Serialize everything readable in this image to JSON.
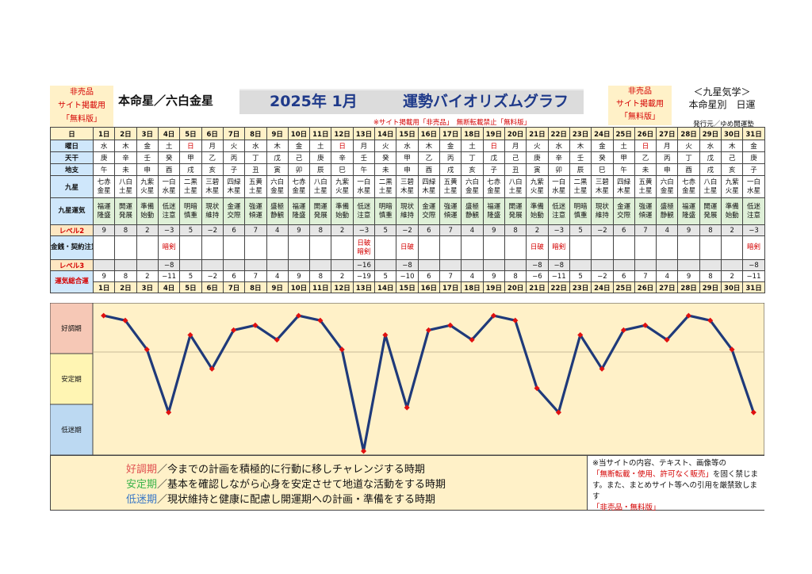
{
  "header": {
    "left_badge": [
      "非売品",
      "サイト掲載用",
      "「無料版」"
    ],
    "honmei_label": "本命星／六白金星",
    "title_year": "2025年 1月",
    "title_main": "運勢バイオリズムグラフ",
    "right_badge": [
      "非売品",
      "サイト掲載用",
      "「無料版」"
    ],
    "kyusei_title": "＜九星気学＞",
    "kyusei_sub": "本命星別　日運",
    "notice": "※サイト掲載用「非売品」　無断転載禁止「無料版」",
    "issuer": "発行元／ゆめ開運塾"
  },
  "row_labels": {
    "day": "日",
    "weekday": "曜日",
    "tenkan": "天干",
    "chishi": "地支",
    "kyusei": "九星",
    "unsei": "九星運気",
    "level2": "レベル2",
    "kinsen": "金銭・契約注意日",
    "level3": "レベル3",
    "total": "運気総合運"
  },
  "days": [
    "1日",
    "2日",
    "3日",
    "4日",
    "5日",
    "6日",
    "7日",
    "8日",
    "9日",
    "10日",
    "11日",
    "12日",
    "13日",
    "14日",
    "15日",
    "16日",
    "17日",
    "18日",
    "19日",
    "20日",
    "21日",
    "22日",
    "23日",
    "24日",
    "25日",
    "26日",
    "27日",
    "28日",
    "29日",
    "30日",
    "31日"
  ],
  "weekdays": [
    "水",
    "木",
    "金",
    "土",
    "日",
    "月",
    "火",
    "水",
    "木",
    "金",
    "土",
    "日",
    "月",
    "火",
    "水",
    "木",
    "金",
    "土",
    "日",
    "月",
    "火",
    "水",
    "木",
    "金",
    "土",
    "日",
    "月",
    "火",
    "水",
    "木",
    "金"
  ],
  "sunday_color": "#d40000",
  "tenkan": [
    "庚",
    "辛",
    "壬",
    "癸",
    "甲",
    "乙",
    "丙",
    "丁",
    "戊",
    "己",
    "庚",
    "辛",
    "壬",
    "癸",
    "甲",
    "乙",
    "丙",
    "丁",
    "戊",
    "己",
    "庚",
    "辛",
    "壬",
    "癸",
    "甲",
    "乙",
    "丙",
    "丁",
    "戊",
    "己",
    "庚"
  ],
  "chishi": [
    "午",
    "未",
    "申",
    "酉",
    "戌",
    "亥",
    "子",
    "丑",
    "寅",
    "卯",
    "辰",
    "巳",
    "午",
    "未",
    "申",
    "酉",
    "戌",
    "亥",
    "子",
    "丑",
    "寅",
    "卯",
    "辰",
    "巳",
    "午",
    "未",
    "申",
    "酉",
    "戌",
    "亥",
    "子"
  ],
  "kyusei": [
    [
      "七赤",
      "金星"
    ],
    [
      "八白",
      "土星"
    ],
    [
      "九紫",
      "火星"
    ],
    [
      "一白",
      "水星"
    ],
    [
      "二黒",
      "土星"
    ],
    [
      "三碧",
      "木星"
    ],
    [
      "四緑",
      "木星"
    ],
    [
      "五黄",
      "土星"
    ],
    [
      "六白",
      "金星"
    ],
    [
      "七赤",
      "金星"
    ],
    [
      "八白",
      "土星"
    ],
    [
      "九紫",
      "火星"
    ],
    [
      "一白",
      "水星"
    ],
    [
      "二黒",
      "土星"
    ],
    [
      "三碧",
      "木星"
    ],
    [
      "四緑",
      "木星"
    ],
    [
      "五黄",
      "土星"
    ],
    [
      "六白",
      "金星"
    ],
    [
      "七赤",
      "金星"
    ],
    [
      "八白",
      "土星"
    ],
    [
      "九紫",
      "火星"
    ],
    [
      "一白",
      "水星"
    ],
    [
      "二黒",
      "土星"
    ],
    [
      "三碧",
      "木星"
    ],
    [
      "四緑",
      "木星"
    ],
    [
      "五黄",
      "土星"
    ],
    [
      "六白",
      "金星"
    ],
    [
      "七赤",
      "金星"
    ],
    [
      "八白",
      "土星"
    ],
    [
      "九紫",
      "火星"
    ],
    [
      "一白",
      "水星"
    ]
  ],
  "unsei": [
    [
      "福運",
      "隆盛"
    ],
    [
      "開運",
      "発展"
    ],
    [
      "準備",
      "始動"
    ],
    [
      "低迷",
      "注意"
    ],
    [
      "明暗",
      "慎重"
    ],
    [
      "現状",
      "維持"
    ],
    [
      "金運",
      "交際"
    ],
    [
      "強運",
      "傾運"
    ],
    [
      "盛極",
      "静観"
    ],
    [
      "福運",
      "隆盛"
    ],
    [
      "開運",
      "発展"
    ],
    [
      "準備",
      "始動"
    ],
    [
      "低迷",
      "注意"
    ],
    [
      "明暗",
      "慎重"
    ],
    [
      "現状",
      "維持"
    ],
    [
      "金運",
      "交際"
    ],
    [
      "強運",
      "傾運"
    ],
    [
      "盛極",
      "静観"
    ],
    [
      "福運",
      "隆盛"
    ],
    [
      "開運",
      "発展"
    ],
    [
      "準備",
      "始動"
    ],
    [
      "低迷",
      "注意"
    ],
    [
      "明暗",
      "慎重"
    ],
    [
      "現状",
      "維持"
    ],
    [
      "金運",
      "交際"
    ],
    [
      "強運",
      "傾運"
    ],
    [
      "盛極",
      "静観"
    ],
    [
      "福運",
      "隆盛"
    ],
    [
      "開運",
      "発展"
    ],
    [
      "準備",
      "始動"
    ],
    [
      "低迷",
      "注意"
    ]
  ],
  "level2": [
    "9",
    "8",
    "2",
    "−3",
    "5",
    "−2",
    "6",
    "7",
    "4",
    "9",
    "8",
    "2",
    "−3",
    "5",
    "−2",
    "6",
    "7",
    "4",
    "9",
    "8",
    "2",
    "−3",
    "5",
    "−2",
    "6",
    "7",
    "4",
    "9",
    "8",
    "2",
    "−3"
  ],
  "kinsen": [
    "",
    "",
    "",
    "暗剣",
    "",
    "",
    "",
    "",
    "",
    "",
    "",
    "",
    "日破\n暗剣",
    "",
    "日破",
    "",
    "",
    "",
    "",
    "",
    "日破",
    "暗剣",
    "",
    "",
    "",
    "",
    "",
    "",
    "",
    "",
    "暗剣"
  ],
  "level3": [
    "",
    "",
    "",
    "−8",
    "",
    "",
    "",
    "",
    "",
    "",
    "",
    "",
    "−16",
    "",
    "−8",
    "",
    "",
    "",
    "",
    "",
    "−8",
    "−8",
    "",
    "",
    "",
    "",
    "",
    "",
    "",
    "",
    "−8"
  ],
  "total": [
    "9",
    "8",
    "2",
    "−11",
    "5",
    "−2",
    "6",
    "7",
    "4",
    "9",
    "8",
    "2",
    "−19",
    "5",
    "−10",
    "6",
    "7",
    "4",
    "9",
    "8",
    "−6",
    "−11",
    "5",
    "−2",
    "6",
    "7",
    "4",
    "9",
    "8",
    "2",
    "−11"
  ],
  "chart_data": {
    "type": "line",
    "title": "",
    "categories": [
      "1日",
      "2日",
      "3日",
      "4日",
      "5日",
      "6日",
      "7日",
      "8日",
      "9日",
      "10日",
      "11日",
      "12日",
      "13日",
      "14日",
      "15日",
      "16日",
      "17日",
      "18日",
      "19日",
      "20日",
      "21日",
      "22日",
      "23日",
      "24日",
      "25日",
      "26日",
      "27日",
      "28日",
      "29日",
      "30日",
      "31日"
    ],
    "values": [
      9,
      8,
      2,
      -11,
      5,
      -2,
      6,
      7,
      4,
      9,
      8,
      2,
      -19,
      5,
      -10,
      6,
      7,
      4,
      9,
      8,
      -6,
      -11,
      5,
      -2,
      6,
      7,
      4,
      9,
      8,
      2,
      -11
    ],
    "ylim": [
      -19,
      10
    ],
    "zones": [
      "好調期",
      "安定期",
      "低迷期"
    ],
    "zone_colors": [
      "#f6c8b6",
      "#fff5b3",
      "#bcd9f2"
    ],
    "line_color": "#1f3a7a",
    "marker_color": "#e01010",
    "plot_bg": "#fff1c8"
  },
  "legend": {
    "good_term": "好調期",
    "good_text": "／今までの計画を積極的に行動に移しチャレンジする時期",
    "stable_term": "安定期",
    "stable_text": "／基本を確認しながら心身を安定させて地道な活動をする時期",
    "low_term": "低迷期",
    "low_text": "／現状維持と健康に配慮し開運期への計画・準備をする時期",
    "note_1": "※当サイトの内容、テキスト、画像等の",
    "note_2": "「無断転載・使用、許可なく販売」",
    "note_3": "を固く禁じます。また、まとめサイト等への引用を厳禁致します",
    "note_4": "「非売品・無料版」"
  }
}
